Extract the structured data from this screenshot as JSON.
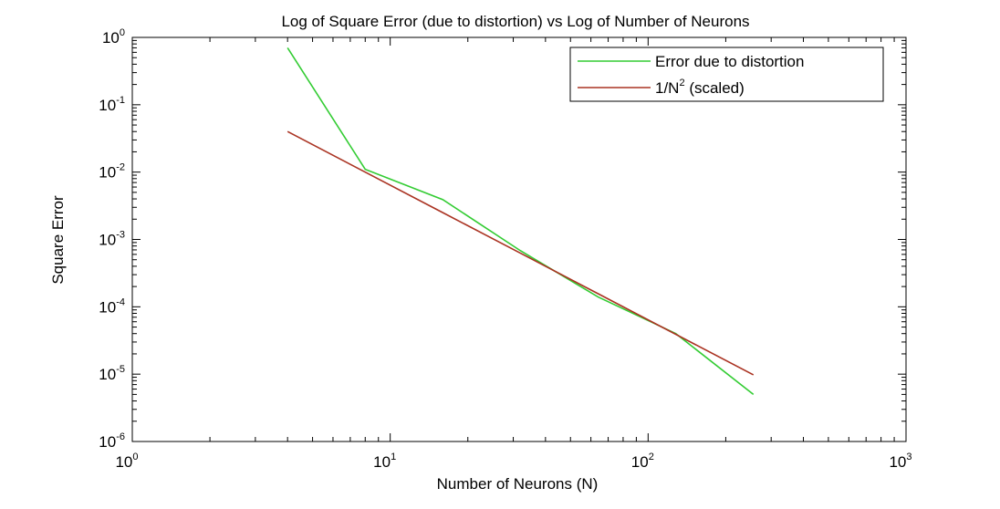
{
  "chart_data": {
    "type": "line",
    "title": "Log of Square Error (due to distortion) vs Log of Number of Neurons",
    "xlabel": "Number of Neurons (N)",
    "ylabel": "Square Error",
    "xscale": "log",
    "yscale": "log",
    "xlim": [
      1,
      1000
    ],
    "ylim": [
      1e-06,
      1
    ],
    "grid": false,
    "legend_position": "top-right",
    "x_ticks": [
      {
        "value": 1,
        "base": "10",
        "exp": "0"
      },
      {
        "value": 10,
        "base": "10",
        "exp": "1"
      },
      {
        "value": 100,
        "base": "10",
        "exp": "2"
      },
      {
        "value": 1000,
        "base": "10",
        "exp": "3"
      }
    ],
    "y_ticks": [
      {
        "value": 1,
        "base": "10",
        "exp": "0"
      },
      {
        "value": 0.1,
        "base": "10",
        "exp": "-1"
      },
      {
        "value": 0.01,
        "base": "10",
        "exp": "-2"
      },
      {
        "value": 0.001,
        "base": "10",
        "exp": "-3"
      },
      {
        "value": 0.0001,
        "base": "10",
        "exp": "-4"
      },
      {
        "value": 1e-05,
        "base": "10",
        "exp": "-5"
      },
      {
        "value": 1e-06,
        "base": "10",
        "exp": "-6"
      }
    ],
    "series": [
      {
        "name": "Error due to distortion",
        "color": "#33cc33",
        "x": [
          4,
          8,
          16,
          32,
          64,
          128,
          256
        ],
        "y": [
          0.7,
          0.011,
          0.0039,
          0.00068,
          0.00014,
          4e-05,
          5e-06
        ]
      },
      {
        "name": "1/N",
        "name_superscript": "2",
        "name_suffix": " (scaled)",
        "color": "#aa3322",
        "x": [
          4,
          8,
          16,
          32,
          64,
          128,
          256
        ],
        "y": [
          0.04,
          0.01,
          0.0025,
          0.000625,
          0.00015625,
          3.90625e-05,
          9.7656e-06
        ]
      }
    ]
  }
}
